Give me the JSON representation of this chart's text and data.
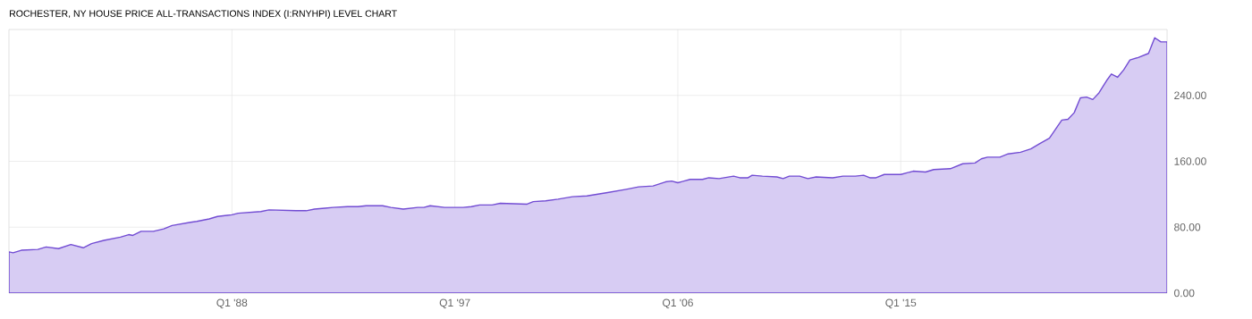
{
  "chart_data": {
    "type": "area",
    "title": "ROCHESTER, NY HOUSE PRICE ALL-TRANSACTIONS INDEX (I:RNYHPI) LEVEL CHART",
    "x": [
      "1979-01",
      "1979-03",
      "1979-07",
      "1980-03",
      "1980-07",
      "1981-01",
      "1981-07",
      "1982-01",
      "1982-05",
      "1982-11",
      "1983-07",
      "1983-11",
      "1984-01",
      "1984-05",
      "1984-11",
      "1985-04",
      "1985-08",
      "1986-05",
      "1986-08",
      "1987-02",
      "1987-06",
      "1988-01",
      "1988-04",
      "1989-03",
      "1989-07",
      "1990-08",
      "1991-01",
      "1991-05",
      "1991-10",
      "1992-02",
      "1992-09",
      "1993-02",
      "1993-06",
      "1994-02",
      "1994-06",
      "1994-12",
      "1995-07",
      "1995-10",
      "1996-01",
      "1996-08",
      "1997-05",
      "1997-09",
      "1998-01",
      "1998-07",
      "1998-11",
      "1999-12",
      "2000-03",
      "2000-09",
      "2001-03",
      "2001-10",
      "2002-05",
      "2003-03",
      "2003-12",
      "2004-06",
      "2005-01",
      "2005-07",
      "2005-10",
      "2006-01",
      "2006-07",
      "2007-01",
      "2007-04",
      "2007-09",
      "2008-04",
      "2008-07",
      "2008-11",
      "2009-01",
      "2009-06",
      "2010-01",
      "2010-04",
      "2010-07",
      "2010-12",
      "2011-04",
      "2011-08",
      "2012-04",
      "2012-09",
      "2013-03",
      "2013-07",
      "2013-10",
      "2014-01",
      "2014-05",
      "2014-10",
      "2015-01",
      "2015-07",
      "2016-01",
      "2016-05",
      "2017-01",
      "2017-07",
      "2018-01",
      "2018-04",
      "2018-07",
      "2019-01",
      "2019-05",
      "2019-11",
      "2020-04",
      "2020-08",
      "2021-01",
      "2021-07",
      "2021-10",
      "2022-01",
      "2022-04",
      "2022-07",
      "2022-10",
      "2023-01",
      "2023-05",
      "2023-07",
      "2023-10",
      "2024-01",
      "2024-04",
      "2024-08",
      "2025-01",
      "2025-04",
      "2025-07",
      "2025-10"
    ],
    "series": [
      {
        "color": "#d7ccf3",
        "values": [
          50,
          49,
          52,
          53,
          56,
          54,
          59,
          55,
          60,
          64,
          68,
          71,
          70,
          75,
          75,
          78,
          82,
          86,
          87,
          90,
          93,
          95,
          97,
          99,
          101,
          100,
          100,
          102,
          103,
          104,
          105,
          105,
          106,
          106,
          104,
          102,
          104,
          104,
          106,
          104,
          104,
          105,
          107,
          107,
          109,
          108,
          111,
          112,
          114,
          117,
          118,
          122,
          126,
          129,
          130,
          135,
          136,
          134,
          138,
          138,
          140,
          139,
          142,
          140,
          140,
          143,
          142,
          141,
          139,
          142,
          142,
          139,
          141,
          140,
          142,
          142,
          143,
          140,
          140,
          144,
          144,
          144,
          148,
          147,
          150,
          151,
          157,
          158,
          163,
          165,
          165,
          169,
          171,
          175,
          181,
          188,
          210,
          211,
          219,
          237,
          238,
          235,
          243,
          259,
          266,
          262,
          271,
          283,
          286,
          291,
          310,
          305,
          305
        ]
      }
    ],
    "xlim": [
      "1979-01",
      "2025-10"
    ],
    "ylim": [
      0,
      320
    ],
    "xticks": [
      {
        "value": "1988-01",
        "label": "Q1 '88"
      },
      {
        "value": "1997-01",
        "label": "Q1 '97"
      },
      {
        "value": "2006-01",
        "label": "Q1 '06"
      },
      {
        "value": "2015-01",
        "label": "Q1 '15"
      }
    ],
    "yticks": [
      {
        "value": 0,
        "label": "0.00"
      },
      {
        "value": 80,
        "label": "80.00"
      },
      {
        "value": 160,
        "label": "160.00"
      },
      {
        "value": 240,
        "label": "240.00"
      }
    ],
    "grid": true
  }
}
